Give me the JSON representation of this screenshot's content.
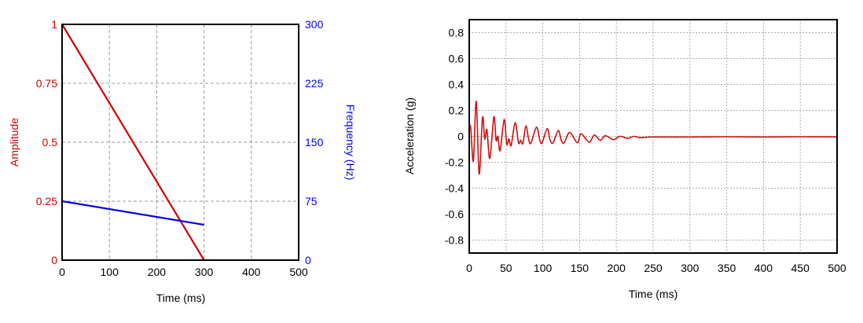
{
  "chart_data": [
    {
      "type": "line",
      "xlabel": "Time (ms)",
      "ylabel": "Amplitude",
      "y2label": "Frequency (Hz)",
      "xlim": [
        0,
        500
      ],
      "ylim": [
        0,
        1
      ],
      "y2lim": [
        0,
        300
      ],
      "xticks": [
        "0",
        "100",
        "200",
        "300",
        "400",
        "500"
      ],
      "yticks": [
        "0",
        "0.25",
        "0.5",
        "0.75",
        "1"
      ],
      "y2ticks": [
        "0",
        "75",
        "150",
        "225",
        "300"
      ],
      "grid": "dashed",
      "series": [
        {
          "axis": "left",
          "color": "#cc0000",
          "x": [
            0,
            300
          ],
          "y": [
            1,
            0
          ]
        },
        {
          "axis": "right",
          "color": "#0000ee",
          "x": [
            0,
            300
          ],
          "y": [
            75,
            45
          ]
        }
      ]
    },
    {
      "type": "line",
      "xlabel": "Time (ms)",
      "ylabel": "Acceleration (g)",
      "xlim": [
        0,
        500
      ],
      "ylim": [
        -0.9,
        0.9
      ],
      "xticks": [
        "0",
        "50",
        "100",
        "150",
        "200",
        "250",
        "300",
        "350",
        "400",
        "450",
        "500"
      ],
      "yticks": [
        "-0.8",
        "-0.6",
        "-0.4",
        "-0.2",
        "0",
        "0.2",
        "0.4",
        "0.6",
        "0.8"
      ],
      "grid": "dotted",
      "series": [
        {
          "color": "#cc1111",
          "points": [
            [
              0,
              0.05
            ],
            [
              2,
              0.07
            ],
            [
              5.6,
              -0.19
            ],
            [
              9.5,
              0.27
            ],
            [
              13.5,
              -0.29
            ],
            [
              18,
              0.145
            ],
            [
              21,
              -0.02
            ],
            [
              24,
              0.05
            ],
            [
              28,
              -0.17
            ],
            [
              33.5,
              0.15
            ],
            [
              36.5,
              -0.03
            ],
            [
              39,
              0.0
            ],
            [
              42,
              -0.11
            ],
            [
              47.5,
              0.13
            ],
            [
              51,
              -0.06
            ],
            [
              54,
              -0.02
            ],
            [
              57,
              -0.07
            ],
            [
              62.5,
              0.105
            ],
            [
              67,
              -0.05
            ],
            [
              70,
              -0.03
            ],
            [
              73,
              -0.055
            ],
            [
              77,
              0.08
            ],
            [
              81,
              -0.03
            ],
            [
              84,
              -0.05
            ],
            [
              91.5,
              0.07
            ],
            [
              96,
              -0.03
            ],
            [
              99,
              -0.05
            ],
            [
              106,
              0.06
            ],
            [
              110,
              -0.03
            ],
            [
              114,
              -0.05
            ],
            [
              121,
              0.045
            ],
            [
              125,
              -0.03
            ],
            [
              129,
              -0.05
            ],
            [
              136.5,
              0.03
            ],
            [
              147,
              -0.05
            ],
            [
              152,
              0.02
            ],
            [
              163,
              -0.045
            ],
            [
              170,
              0.01
            ],
            [
              178,
              -0.03
            ],
            [
              185,
              0.005
            ],
            [
              196,
              -0.025
            ],
            [
              205,
              0.0
            ],
            [
              215,
              -0.015
            ],
            [
              224,
              0.0
            ],
            [
              232,
              -0.01
            ],
            [
              250,
              -0.005
            ],
            [
              300,
              -0.005
            ],
            [
              350,
              -0.003
            ],
            [
              400,
              -0.005
            ],
            [
              450,
              -0.003
            ],
            [
              500,
              -0.004
            ]
          ]
        }
      ]
    }
  ]
}
